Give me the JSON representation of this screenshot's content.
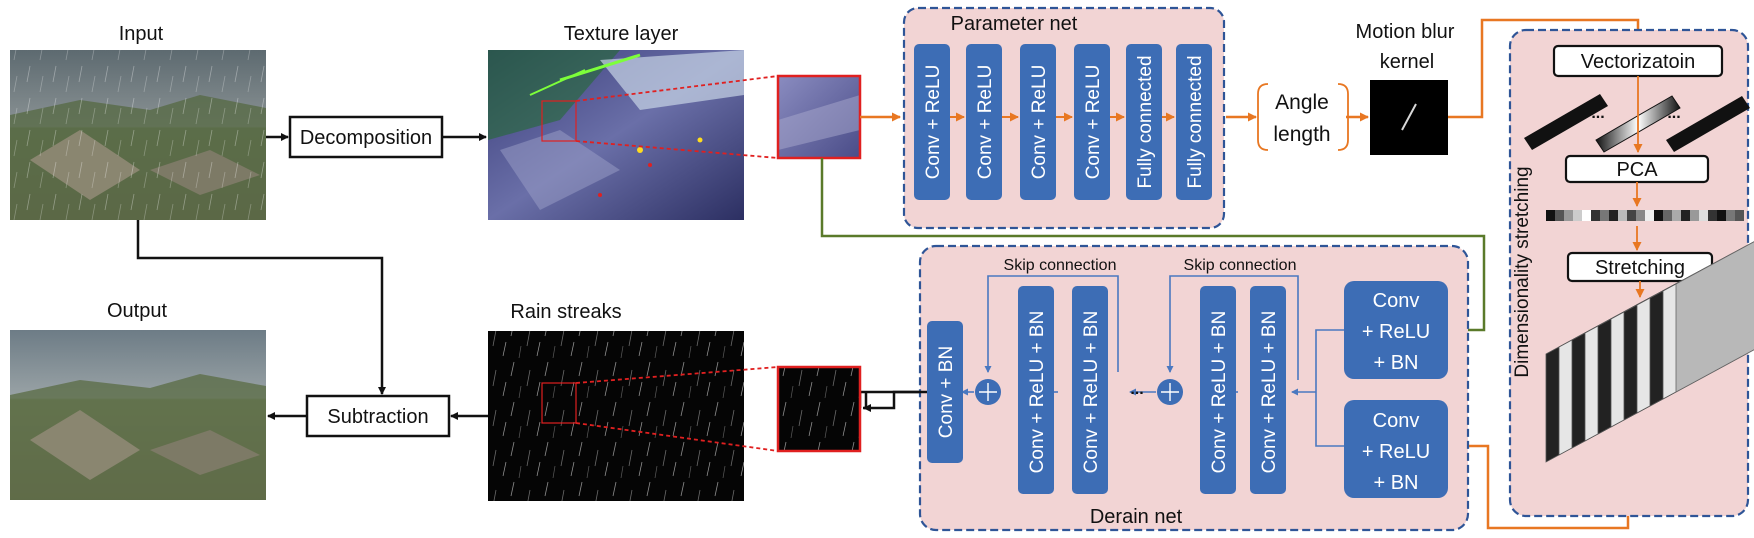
{
  "images": {
    "input": "Input",
    "texture": "Texture layer",
    "output": "Output",
    "rain": "Rain streaks"
  },
  "ops": {
    "decomposition": "Decomposition",
    "subtraction": "Subtraction"
  },
  "parameter_net": {
    "title": "Parameter net",
    "layers": [
      "Conv + ReLU",
      "Conv + ReLU",
      "Conv + ReLU",
      "Conv + ReLU",
      "Fully connected",
      "Fully connected"
    ]
  },
  "angle": {
    "line1": "Angle",
    "line2": "length"
  },
  "kernel": {
    "line1": "Motion blur",
    "line2": "kernel"
  },
  "dim_stretch": {
    "title": "Dimensionality stretching",
    "vectorization": "Vectorizatoin",
    "pca": "PCA",
    "stretching": "Stretching",
    "dots": "..."
  },
  "derain_net": {
    "title": "Derain net",
    "skip1": "Skip connection",
    "skip2": "Skip connection",
    "conv_bn": "Conv + BN",
    "crb": "Conv + ReLU + BN",
    "dots": "...",
    "right_block_top": [
      "Conv",
      "+ ReLU",
      "+ BN"
    ],
    "right_block_bottom": [
      "Conv",
      "+ ReLU",
      "+ BN"
    ]
  },
  "colors": {
    "orange": "#e87722",
    "green": "#5a7a2a",
    "block_blue": "#3d6db5",
    "panel_pink": "#f2d4d4",
    "panel_border": "#2f5597",
    "zoom_red": "#e02020"
  }
}
